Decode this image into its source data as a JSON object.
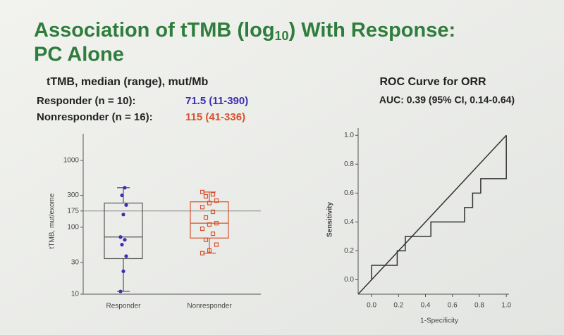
{
  "title": [
    "Association of tTMB (log",
    "10",
    ") With Response:",
    "PC Alone"
  ],
  "summary": {
    "heading": "tTMB, median (range), mut/Mb",
    "rows": [
      {
        "label": "Responder (n = 10):",
        "value": "71.5 (11-390)",
        "color": "#3a2fb0"
      },
      {
        "label": "Nonresponder (n = 16):",
        "value": "115 (41-336)",
        "color": "#d5532f"
      }
    ]
  },
  "chart_data": [
    {
      "type": "box",
      "y_label": "tTMB, mut/exome",
      "log_y": true,
      "ylim": [
        10,
        2500
      ],
      "yticks": [
        10,
        30,
        100,
        175,
        300,
        1000
      ],
      "hline": 175,
      "categories": [
        "Responder",
        "Nonresponder"
      ],
      "series": [
        {
          "name": "Responder",
          "color": "#3a2fb0",
          "min": 11,
          "q1": 34,
          "median": 71.5,
          "q3": 230,
          "max": 390,
          "points": [
            11,
            22,
            37,
            55,
            65,
            71.5,
            155,
            215,
            300,
            390
          ]
        },
        {
          "name": "Nonresponder",
          "color": "#d5532f",
          "min": 41,
          "q1": 69,
          "median": 115,
          "q3": 240,
          "max": 336,
          "points": [
            41,
            45,
            55,
            65,
            80,
            95,
            110,
            115,
            140,
            170,
            200,
            230,
            250,
            290,
            310,
            336
          ]
        }
      ]
    },
    {
      "type": "line",
      "title": "ROC Curve for ORR",
      "subtitle": "AUC: 0.39 (95% CI, 0.14-0.64)",
      "x_label": "1-Specificity",
      "y_label": "Sensitivity",
      "xlim": [
        -0.1,
        1.02
      ],
      "ylim": [
        -0.1,
        1.05
      ],
      "xticks": [
        {
          "value": 0,
          "label": "0.0"
        },
        {
          "value": 0.2,
          "label": "0.2"
        },
        {
          "value": 0.4,
          "label": "0.4"
        },
        {
          "value": 0.6,
          "label": "0.6"
        },
        {
          "value": 0.8,
          "label": "0.8"
        },
        {
          "value": 1,
          "label": "1.0"
        }
      ],
      "yticks": [
        {
          "value": 0,
          "label": "0.0"
        },
        {
          "value": 0.2,
          "label": "0.2"
        },
        {
          "value": 0.4,
          "label": "0.4"
        },
        {
          "value": 0.6,
          "label": "0.6"
        },
        {
          "value": 0.8,
          "label": "0.8"
        },
        {
          "value": 1,
          "label": "1.0"
        }
      ],
      "series": [
        {
          "color": "#333333",
          "x": [
            -0.1,
            1.0
          ],
          "values": [
            -0.1,
            1.0
          ]
        },
        {
          "color": "#333333",
          "x": [
            0,
            0,
            0.19,
            0.19,
            0.25,
            0.25,
            0.44,
            0.44,
            0.69,
            0.69,
            0.75,
            0.75,
            0.81,
            0.81,
            1.0,
            1.0
          ],
          "values": [
            0,
            0.1,
            0.1,
            0.2,
            0.2,
            0.3,
            0.3,
            0.4,
            0.4,
            0.5,
            0.5,
            0.6,
            0.6,
            0.7,
            0.7,
            1.0
          ]
        }
      ]
    }
  ]
}
